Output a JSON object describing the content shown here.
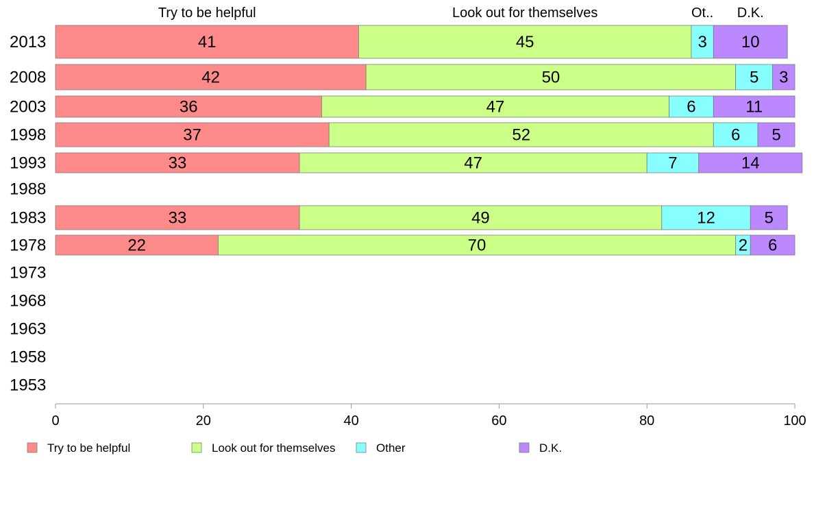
{
  "chart_data": {
    "type": "bar",
    "orientation": "horizontal",
    "stacked": true,
    "categories": [
      "2013",
      "2008",
      "2003",
      "1998",
      "1993",
      "1988",
      "1983",
      "1978",
      "1973",
      "1968",
      "1963",
      "1958",
      "1953"
    ],
    "series": [
      {
        "name": "Try to be helpful",
        "color": "#ff8a8a",
        "values": [
          41,
          42,
          36,
          37,
          33,
          null,
          33,
          22,
          null,
          null,
          null,
          null,
          null
        ]
      },
      {
        "name": "Look out for themselves",
        "color": "#ccff88",
        "values": [
          45,
          50,
          47,
          52,
          47,
          null,
          49,
          70,
          null,
          null,
          null,
          null,
          null
        ]
      },
      {
        "name": "Other",
        "color": "#88ffff",
        "values": [
          3,
          5,
          6,
          6,
          7,
          null,
          12,
          2,
          null,
          null,
          null,
          null,
          null
        ]
      },
      {
        "name": "D.K.",
        "color": "#bb88ff",
        "values": [
          10,
          3,
          11,
          5,
          14,
          null,
          5,
          6,
          null,
          null,
          null,
          null,
          null
        ]
      }
    ],
    "top_labels": [
      "Try to be helpful",
      "Look out for themselves",
      "Ot..",
      "D.K."
    ],
    "xlim": [
      0,
      100
    ],
    "x_ticks": [
      "0",
      "20",
      "40",
      "60",
      "80",
      "100"
    ],
    "grid": false,
    "legend_position": "bottom"
  }
}
